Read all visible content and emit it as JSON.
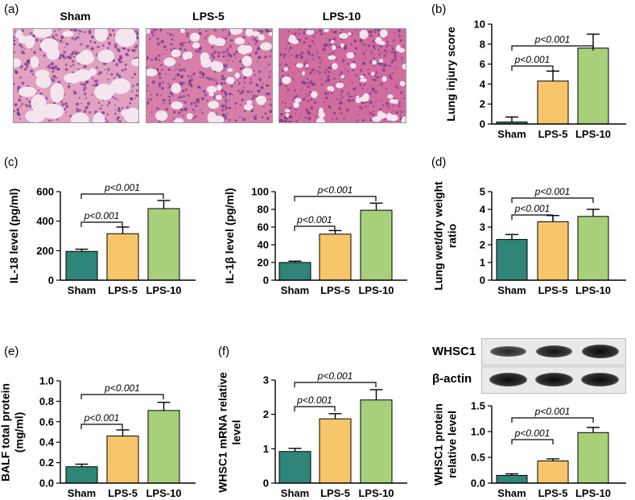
{
  "panel_letters": [
    "(a)",
    "(b)",
    "(c)",
    "(d)",
    "(e)",
    "(f)"
  ],
  "histology": {
    "titles": [
      "Sham",
      "LPS-5",
      "LPS-10"
    ],
    "stain_colors": [
      "#c9548c",
      "#7b3f8f",
      "#f4e6ef"
    ]
  },
  "western_blot": {
    "rows": [
      "WHSC1",
      "β-actin"
    ],
    "band_intensity": [
      [
        0.55,
        0.85,
        1.0
      ],
      [
        1.0,
        1.0,
        1.0
      ]
    ]
  },
  "colors": {
    "sham": "#2f8577",
    "lps5": "#f8c66a",
    "lps10": "#a8cf7a"
  },
  "chart_data": [
    {
      "id": "lung-injury",
      "type": "bar",
      "categories": [
        "Sham",
        "LPS-5",
        "LPS-10"
      ],
      "values": [
        0.2,
        4.3,
        7.6
      ],
      "errors": [
        0.5,
        1.0,
        1.4
      ],
      "ylabel": "Lung injury score",
      "ylim": [
        0,
        10
      ],
      "yticks": [
        "0",
        "2",
        "4",
        "6",
        "8",
        "10"
      ],
      "annotations": [
        "p<0.001",
        "p<0.001"
      ]
    },
    {
      "id": "il18",
      "type": "bar",
      "categories": [
        "Sham",
        "LPS-5",
        "LPS-10"
      ],
      "values": [
        195,
        315,
        485
      ],
      "errors": [
        15,
        45,
        55
      ],
      "ylabel": "IL-18 level (pg/ml)",
      "ylim": [
        0,
        600
      ],
      "yticks": [
        "0",
        "200",
        "400",
        "600"
      ],
      "annotations": [
        "p<0.001",
        "p<0.001"
      ]
    },
    {
      "id": "il1b",
      "type": "bar",
      "categories": [
        "Sham",
        "LPS-5",
        "LPS-10"
      ],
      "values": [
        20,
        52,
        79
      ],
      "errors": [
        1.5,
        4,
        8
      ],
      "ylabel": "IL-1β level (pg/ml)",
      "ylim": [
        0,
        100
      ],
      "yticks": [
        "0",
        "20",
        "40",
        "60",
        "80",
        "100"
      ],
      "annotations": [
        "p<0.001",
        "p<0.001"
      ]
    },
    {
      "id": "wet-dry",
      "type": "bar",
      "categories": [
        "Sham",
        "LPS-5",
        "LPS-10"
      ],
      "values": [
        2.3,
        3.3,
        3.6
      ],
      "errors": [
        0.28,
        0.35,
        0.4
      ],
      "ylabel": "Lung wet/dry weight ratio",
      "ylabel_lines": [
        "Lung wet/dry weight",
        "ratio"
      ],
      "ylim": [
        0,
        5
      ],
      "yticks": [
        "0",
        "1",
        "2",
        "3",
        "4",
        "5"
      ],
      "annotations": [
        "p<0.001",
        "p<0.001"
      ]
    },
    {
      "id": "balf",
      "type": "bar",
      "categories": [
        "Sham",
        "LPS-5",
        "LPS-10"
      ],
      "values": [
        0.16,
        0.46,
        0.71
      ],
      "errors": [
        0.025,
        0.06,
        0.08
      ],
      "ylabel": "BALF total protein (mg/ml)",
      "ylabel_lines": [
        "BALF total protein",
        "(mg/ml)"
      ],
      "ylim": [
        0,
        1.0
      ],
      "yticks": [
        "0.0",
        "0.2",
        "0.4",
        "0.6",
        "0.8",
        "1.0"
      ],
      "annotations": [
        "p<0.001",
        "p<0.001"
      ]
    },
    {
      "id": "whsc1-mrna",
      "type": "bar",
      "categories": [
        "Sham",
        "LPS-5",
        "LPS-10"
      ],
      "values": [
        0.92,
        1.87,
        2.42
      ],
      "errors": [
        0.09,
        0.15,
        0.3
      ],
      "ylabel": "WHSC1 mRNA relative level",
      "ylabel_lines": [
        "WHSC1 mRNA relative",
        "level"
      ],
      "ylim": [
        0,
        3
      ],
      "yticks": [
        "0",
        "1",
        "2",
        "3"
      ],
      "annotations": [
        "p<0.001",
        "p<0.001"
      ]
    },
    {
      "id": "whsc1-protein",
      "type": "bar",
      "categories": [
        "Sham",
        "LPS-5",
        "LPS-10"
      ],
      "values": [
        0.15,
        0.43,
        0.98
      ],
      "errors": [
        0.03,
        0.04,
        0.1
      ],
      "ylabel": "WHSC1 protein relative level",
      "ylabel_lines": [
        "WHSC1 protein",
        "relative level"
      ],
      "ylim": [
        0,
        1.5
      ],
      "yticks": [
        "0.0",
        "0.5",
        "1.0",
        "1.5"
      ],
      "annotations": [
        "p<0.001",
        "p<0.001"
      ]
    }
  ]
}
